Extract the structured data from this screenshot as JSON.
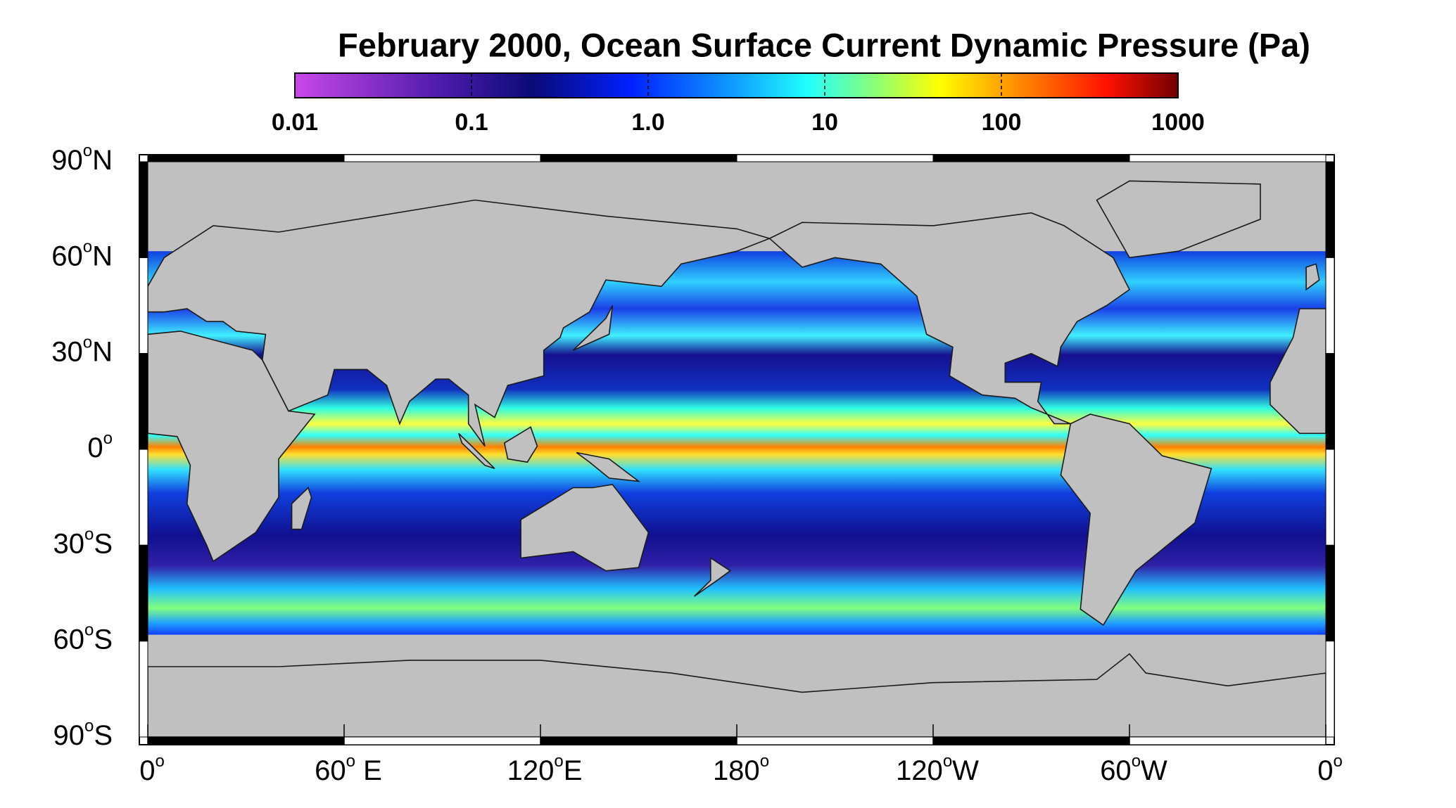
{
  "title": "February 2000, Ocean Surface Current Dynamic Pressure (Pa)",
  "colorbar": {
    "scale": "log",
    "lim": [
      0.01,
      1000
    ],
    "ticks": [
      0.01,
      0.1,
      {
        "value": 1,
        "label": "1.0"
      },
      10,
      100,
      1000
    ]
  },
  "map": {
    "yticks": [
      {
        "value": 90,
        "label": [
          "90",
          "o",
          "N"
        ]
      },
      {
        "value": 60,
        "label": [
          "60",
          "o",
          "N"
        ]
      },
      {
        "value": 30,
        "label": [
          "30",
          "o",
          "N"
        ]
      },
      {
        "value": 0,
        "label": [
          "0",
          "o"
        ]
      },
      {
        "value": -30,
        "label": [
          "30",
          "o",
          "S"
        ]
      },
      {
        "value": -60,
        "label": [
          "60",
          "o",
          "S"
        ]
      },
      {
        "value": -90,
        "label": [
          "90",
          "o",
          "S"
        ]
      }
    ],
    "xticks": [
      {
        "value": 0,
        "label": [
          "0",
          "o"
        ]
      },
      {
        "value": 60,
        "label": [
          "60",
          "o",
          " E"
        ]
      },
      {
        "value": 120,
        "label": [
          "120",
          "o",
          "E"
        ]
      },
      {
        "value": 180,
        "label": [
          "180",
          "o"
        ]
      },
      {
        "value": 240,
        "label": [
          "120",
          "o",
          "W"
        ]
      },
      {
        "value": 300,
        "label": [
          "60",
          "o",
          "W"
        ]
      },
      {
        "value": 360,
        "label": [
          "0",
          "o"
        ]
      }
    ]
  }
}
